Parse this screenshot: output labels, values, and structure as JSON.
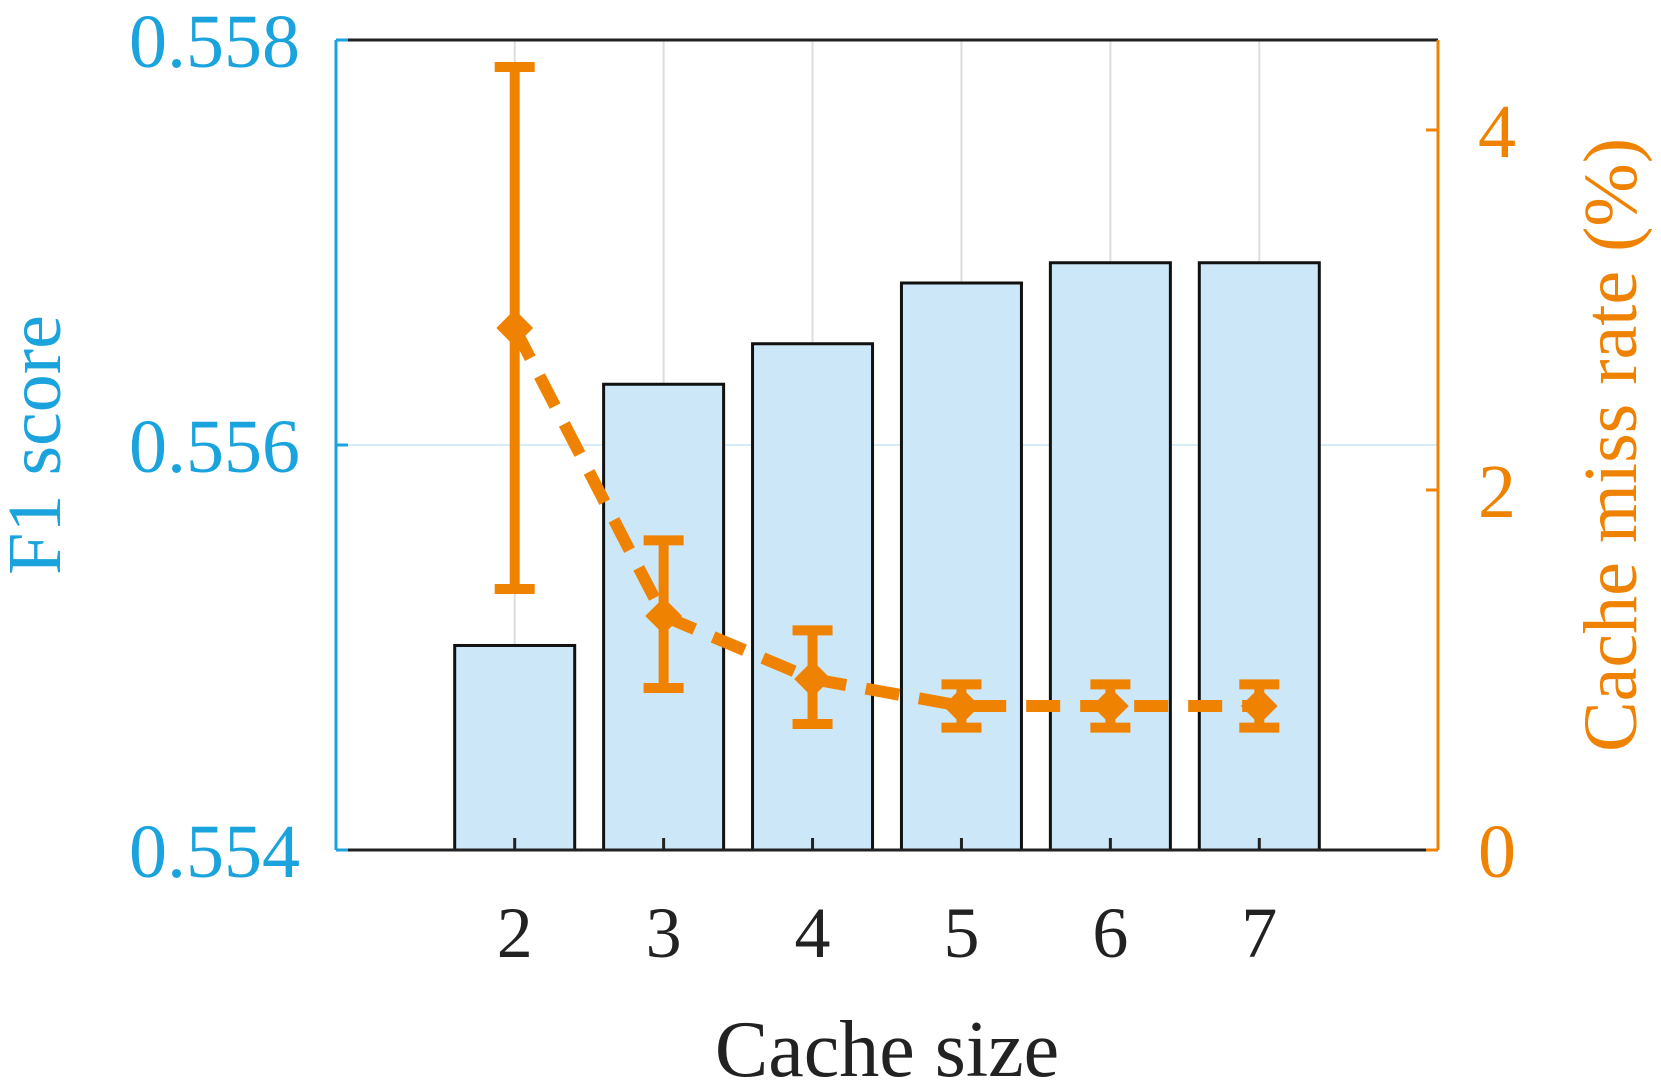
{
  "chart_data": {
    "type": "bar",
    "xlabel": "Cache size",
    "categories": [
      "2",
      "3",
      "4",
      "5",
      "6",
      "7"
    ],
    "xlim": [
      0.8,
      8.2
    ],
    "grid": true,
    "left_axis": {
      "label": "F1 score",
      "ylim": [
        0.554,
        0.558
      ],
      "ticks": [
        0.554,
        0.556,
        0.558
      ],
      "tick_labels": [
        "0.554",
        "0.556",
        "0.558"
      ],
      "color": "#1aa3dc"
    },
    "right_axis": {
      "label": "Cache miss rate (%)",
      "ylim": [
        0,
        4.5
      ],
      "ticks": [
        0,
        2,
        4
      ],
      "tick_labels": [
        "0",
        "2",
        "4"
      ],
      "color": "#ef8200"
    },
    "series": [
      {
        "type": "bar",
        "axis": "left",
        "values": [
          0.55501,
          0.5563,
          0.5565,
          0.5568,
          0.5569,
          0.5569
        ],
        "fill": "#cce7f8",
        "stroke": "#111111"
      },
      {
        "type": "line",
        "axis": "right",
        "values": [
          2.9,
          1.3,
          0.95,
          0.8,
          0.8,
          0.8
        ],
        "err_low": [
          1.45,
          0.9,
          0.7,
          0.68,
          0.68,
          0.68
        ],
        "err_high": [
          4.35,
          1.72,
          1.22,
          0.92,
          0.92,
          0.92
        ],
        "color": "#ef8200",
        "dashed": true
      }
    ]
  }
}
